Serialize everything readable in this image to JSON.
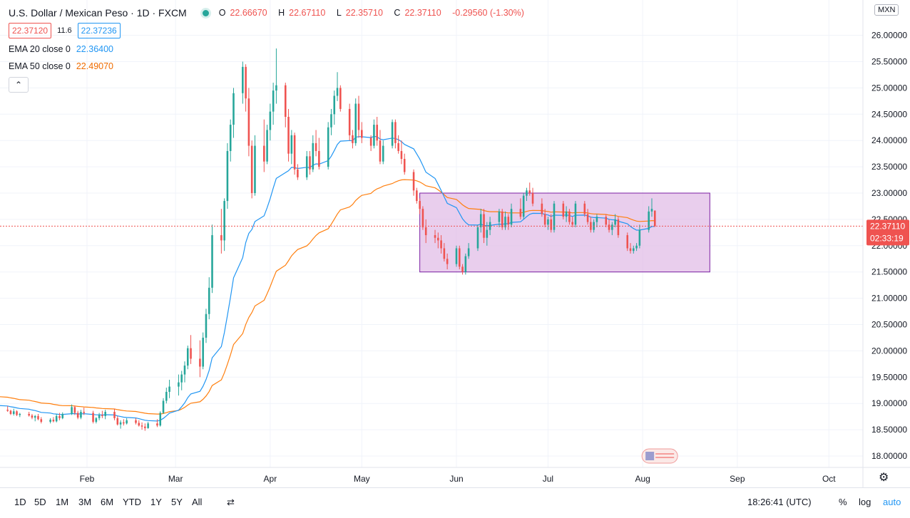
{
  "header": {
    "symbol": "U.S. Dollar / Mexican Peso · 1D · FXCM",
    "ohlc": {
      "o": "22.66670",
      "h": "22.67110",
      "l": "22.35710",
      "c": "22.37110",
      "chg": "-0.29560 (-1.30%)"
    },
    "sell": "22.37120",
    "spread": "11.6",
    "buy": "22.37236",
    "ema20_label": "EMA 20 close 0",
    "ema20_value": "22.36400",
    "ema50_label": "EMA 50 close 0",
    "ema50_value": "22.49070",
    "currency": "MXN"
  },
  "bottom_bar": {
    "timeframes": [
      "1D",
      "5D",
      "1M",
      "3M",
      "6M",
      "YTD",
      "1Y",
      "5Y",
      "All"
    ],
    "time": "18:26:41 (UTC)",
    "percent": "%",
    "log": "log",
    "auto": "auto"
  },
  "price_label": {
    "value": "22.37110",
    "countdown": "02:33:19",
    "color": "#ef5350"
  },
  "colors": {
    "up": "#26a69a",
    "down": "#ef5350",
    "ema20": "#2196f3",
    "ema50": "#ff7f0e",
    "rect_fill": "#e1bee7",
    "rect_border": "#7b1fa2"
  },
  "chart_data": {
    "type": "candlestick",
    "title": "U.S. Dollar / Mexican Peso · 1D · FXCM",
    "y_ticks": [
      18.0,
      18.5,
      19.0,
      19.5,
      20.0,
      20.5,
      21.0,
      21.5,
      22.0,
      22.5,
      23.0,
      23.5,
      24.0,
      24.5,
      25.0,
      25.5,
      26.0
    ],
    "y_tick_labels": [
      "18.00000",
      "18.50000",
      "19.00000",
      "19.50000",
      "20.00000",
      "20.50000",
      "21.00000",
      "21.50000",
      "22.00000",
      "22.50000",
      "23.00000",
      "23.50000",
      "24.00000",
      "24.50000",
      "25.00000",
      "25.50000",
      "26.00000"
    ],
    "x_labels": [
      "Feb",
      "Mar",
      "Apr",
      "May",
      "Jun",
      "Jul",
      "Aug",
      "Sep",
      "Oct"
    ],
    "x_label_dates": [
      "2020-02-01",
      "2020-03-01",
      "2020-04-01",
      "2020-05-01",
      "2020-06-01",
      "2020-07-01",
      "2020-08-01",
      "2020-09-01",
      "2020-10-01"
    ],
    "last_price": 22.3711,
    "rectangle": {
      "date_from": "2020-05-20",
      "date_to": "2020-08-23",
      "price_high": 23.0,
      "price_low": 21.5
    },
    "candles": [
      [
        "2020-01-02",
        18.9,
        18.94,
        18.83,
        18.87
      ],
      [
        "2020-01-03",
        18.87,
        18.92,
        18.82,
        18.88
      ],
      [
        "2020-01-06",
        18.88,
        18.95,
        18.84,
        18.86
      ],
      [
        "2020-01-07",
        18.86,
        18.88,
        18.78,
        18.8
      ],
      [
        "2020-01-08",
        18.8,
        18.9,
        18.77,
        18.85
      ],
      [
        "2020-01-09",
        18.85,
        18.87,
        18.76,
        18.78
      ],
      [
        "2020-01-10",
        18.78,
        18.82,
        18.74,
        18.8
      ],
      [
        "2020-01-13",
        18.8,
        18.84,
        18.75,
        18.77
      ],
      [
        "2020-01-14",
        18.77,
        18.8,
        18.7,
        18.73
      ],
      [
        "2020-01-15",
        18.73,
        18.78,
        18.66,
        18.76
      ],
      [
        "2020-01-16",
        18.76,
        18.8,
        18.68,
        18.7
      ],
      [
        "2020-01-17",
        18.7,
        18.74,
        18.62,
        18.65
      ],
      [
        "2020-01-20",
        18.65,
        18.72,
        18.62,
        18.69
      ],
      [
        "2020-01-21",
        18.69,
        18.74,
        18.64,
        18.66
      ],
      [
        "2020-01-22",
        18.66,
        18.8,
        18.64,
        18.76
      ],
      [
        "2020-01-23",
        18.76,
        18.82,
        18.68,
        18.72
      ],
      [
        "2020-01-24",
        18.72,
        18.83,
        18.7,
        18.8
      ],
      [
        "2020-01-27",
        18.8,
        18.98,
        18.78,
        18.93
      ],
      [
        "2020-01-28",
        18.93,
        18.96,
        18.78,
        18.82
      ],
      [
        "2020-01-29",
        18.82,
        18.86,
        18.7,
        18.73
      ],
      [
        "2020-01-30",
        18.73,
        18.88,
        18.7,
        18.84
      ],
      [
        "2020-01-31",
        18.84,
        18.92,
        18.78,
        18.82
      ],
      [
        "2020-02-03",
        18.82,
        18.86,
        18.62,
        18.65
      ],
      [
        "2020-02-04",
        18.65,
        18.74,
        18.62,
        18.72
      ],
      [
        "2020-02-05",
        18.72,
        18.82,
        18.68,
        18.78
      ],
      [
        "2020-02-06",
        18.78,
        18.86,
        18.72,
        18.76
      ],
      [
        "2020-02-07",
        18.76,
        18.88,
        18.7,
        18.84
      ],
      [
        "2020-02-10",
        18.84,
        18.9,
        18.68,
        18.72
      ],
      [
        "2020-02-11",
        18.72,
        18.76,
        18.58,
        18.6
      ],
      [
        "2020-02-12",
        18.6,
        18.68,
        18.52,
        18.64
      ],
      [
        "2020-02-13",
        18.64,
        18.7,
        18.58,
        18.62
      ],
      [
        "2020-02-14",
        18.62,
        18.72,
        18.6,
        18.68
      ],
      [
        "2020-02-17",
        18.68,
        18.72,
        18.6,
        18.63
      ],
      [
        "2020-02-18",
        18.63,
        18.68,
        18.56,
        18.58
      ],
      [
        "2020-02-19",
        18.58,
        18.64,
        18.5,
        18.56
      ],
      [
        "2020-02-20",
        18.56,
        18.62,
        18.48,
        18.53
      ],
      [
        "2020-02-21",
        18.53,
        18.65,
        18.52,
        18.62
      ],
      [
        "2020-02-24",
        18.62,
        18.7,
        18.55,
        18.58
      ],
      [
        "2020-02-25",
        18.58,
        18.85,
        18.56,
        18.82
      ],
      [
        "2020-02-26",
        18.82,
        19.1,
        18.8,
        19.05
      ],
      [
        "2020-02-27",
        19.05,
        19.3,
        19.0,
        19.22
      ],
      [
        "2020-02-28",
        19.22,
        19.45,
        19.1,
        19.32
      ],
      [
        "2020-03-02",
        19.32,
        19.55,
        19.15,
        19.4
      ],
      [
        "2020-03-03",
        19.4,
        19.62,
        19.25,
        19.55
      ],
      [
        "2020-03-04",
        19.55,
        19.8,
        19.4,
        19.72
      ],
      [
        "2020-03-05",
        19.72,
        20.1,
        19.65,
        20.05
      ],
      [
        "2020-03-06",
        20.05,
        20.3,
        19.75,
        19.85
      ],
      [
        "2020-03-09",
        19.85,
        20.2,
        19.5,
        19.7
      ],
      [
        "2020-03-10",
        19.7,
        20.35,
        19.65,
        20.25
      ],
      [
        "2020-03-11",
        20.25,
        20.8,
        20.15,
        20.7
      ],
      [
        "2020-03-12",
        20.7,
        21.4,
        20.6,
        21.2
      ],
      [
        "2020-03-13",
        21.2,
        22.4,
        21.1,
        22.2
      ],
      [
        "2020-03-16",
        22.2,
        22.7,
        21.85,
        22.1
      ],
      [
        "2020-03-17",
        22.1,
        22.9,
        21.9,
        22.85
      ],
      [
        "2020-03-18",
        22.85,
        23.95,
        22.7,
        23.8
      ],
      [
        "2020-03-19",
        23.8,
        24.4,
        23.6,
        24.3
      ],
      [
        "2020-03-20",
        24.3,
        25.0,
        24.05,
        24.9
      ],
      [
        "2020-03-23",
        24.9,
        25.5,
        24.7,
        25.4
      ],
      [
        "2020-03-24",
        25.4,
        25.45,
        24.55,
        24.8
      ],
      [
        "2020-03-25",
        24.8,
        25.0,
        23.7,
        23.9
      ],
      [
        "2020-03-26",
        23.9,
        24.0,
        22.9,
        23.0
      ],
      [
        "2020-03-27",
        23.0,
        24.1,
        22.95,
        23.9
      ],
      [
        "2020-03-30",
        23.9,
        24.4,
        23.4,
        23.6
      ],
      [
        "2020-03-31",
        23.6,
        24.3,
        23.55,
        24.2
      ],
      [
        "2020-04-01",
        24.2,
        24.7,
        24.0,
        24.55
      ],
      [
        "2020-04-02",
        24.55,
        25.1,
        24.3,
        24.95
      ],
      [
        "2020-04-03",
        24.95,
        25.75,
        24.7,
        25.05
      ],
      [
        "2020-04-06",
        25.05,
        25.1,
        24.25,
        24.45
      ],
      [
        "2020-04-07",
        24.45,
        24.6,
        23.6,
        23.75
      ],
      [
        "2020-04-08",
        23.75,
        24.2,
        23.55,
        24.1
      ],
      [
        "2020-04-09",
        24.1,
        24.15,
        23.35,
        23.45
      ],
      [
        "2020-04-10",
        23.45,
        23.55,
        23.25,
        23.3
      ],
      [
        "2020-04-13",
        23.3,
        23.8,
        23.25,
        23.7
      ],
      [
        "2020-04-14",
        23.7,
        23.8,
        23.35,
        23.45
      ],
      [
        "2020-04-15",
        23.45,
        24.1,
        23.4,
        23.95
      ],
      [
        "2020-04-16",
        23.95,
        24.2,
        23.7,
        23.8
      ],
      [
        "2020-04-17",
        23.8,
        24.05,
        23.45,
        23.5
      ],
      [
        "2020-04-20",
        23.5,
        24.35,
        23.45,
        24.25
      ],
      [
        "2020-04-21",
        24.25,
        24.6,
        24.1,
        24.5
      ],
      [
        "2020-04-22",
        24.5,
        24.95,
        24.3,
        24.85
      ],
      [
        "2020-04-23",
        24.85,
        25.3,
        24.75,
        25.0
      ],
      [
        "2020-04-24",
        25.0,
        25.05,
        24.55,
        24.6
      ],
      [
        "2020-04-27",
        24.6,
        24.7,
        24.0,
        24.1
      ],
      [
        "2020-04-28",
        24.1,
        24.2,
        23.85,
        23.95
      ],
      [
        "2020-04-29",
        23.95,
        24.8,
        23.9,
        24.7
      ],
      [
        "2020-04-30",
        24.7,
        24.85,
        24.05,
        24.2
      ],
      [
        "2020-05-01",
        24.2,
        24.35,
        23.95,
        24.05
      ],
      [
        "2020-05-04",
        24.05,
        24.1,
        23.8,
        23.9
      ],
      [
        "2020-05-05",
        23.9,
        24.4,
        23.85,
        24.3
      ],
      [
        "2020-05-06",
        24.3,
        24.45,
        23.9,
        24.0
      ],
      [
        "2020-05-07",
        24.0,
        24.2,
        23.55,
        23.6
      ],
      [
        "2020-05-08",
        23.6,
        24.0,
        23.55,
        23.9
      ],
      [
        "2020-05-11",
        23.9,
        24.4,
        23.85,
        24.35
      ],
      [
        "2020-05-12",
        24.35,
        24.4,
        23.85,
        23.95
      ],
      [
        "2020-05-13",
        23.95,
        24.1,
        23.75,
        23.8
      ],
      [
        "2020-05-14",
        23.8,
        24.0,
        23.55,
        23.65
      ],
      [
        "2020-05-15",
        23.65,
        23.75,
        23.35,
        23.4
      ],
      [
        "2020-05-18",
        23.4,
        23.45,
        22.95,
        23.05
      ],
      [
        "2020-05-19",
        23.05,
        23.1,
        22.8,
        22.85
      ],
      [
        "2020-05-20",
        22.85,
        22.9,
        22.6,
        22.7
      ],
      [
        "2020-05-21",
        22.7,
        22.75,
        22.3,
        22.35
      ],
      [
        "2020-05-22",
        22.35,
        22.5,
        22.05,
        22.2
      ],
      [
        "2020-05-25",
        22.2,
        22.3,
        22.05,
        22.15
      ],
      [
        "2020-05-26",
        22.15,
        22.25,
        21.95,
        22.1
      ],
      [
        "2020-05-27",
        22.1,
        22.2,
        21.85,
        21.95
      ],
      [
        "2020-05-28",
        21.95,
        22.05,
        21.7,
        21.75
      ],
      [
        "2020-05-29",
        21.75,
        21.85,
        21.55,
        21.65
      ],
      [
        "2020-06-01",
        21.65,
        22.0,
        21.6,
        21.95
      ],
      [
        "2020-06-02",
        21.95,
        22.0,
        21.55,
        21.6
      ],
      [
        "2020-06-03",
        21.6,
        21.65,
        21.45,
        21.5
      ],
      [
        "2020-06-04",
        21.5,
        21.85,
        21.45,
        21.8
      ],
      [
        "2020-06-05",
        21.8,
        22.05,
        21.75,
        21.95
      ],
      [
        "2020-06-08",
        21.95,
        22.4,
        21.9,
        22.35
      ],
      [
        "2020-06-09",
        22.35,
        22.7,
        22.25,
        22.6
      ],
      [
        "2020-06-10",
        22.6,
        22.7,
        22.05,
        22.15
      ],
      [
        "2020-06-11",
        22.15,
        22.45,
        22.0,
        22.3
      ],
      [
        "2020-06-12",
        22.3,
        22.55,
        22.2,
        22.45
      ],
      [
        "2020-06-15",
        22.45,
        22.7,
        22.35,
        22.65
      ],
      [
        "2020-06-16",
        22.65,
        22.7,
        22.3,
        22.35
      ],
      [
        "2020-06-17",
        22.35,
        22.65,
        22.3,
        22.55
      ],
      [
        "2020-06-18",
        22.55,
        22.6,
        22.3,
        22.4
      ],
      [
        "2020-06-19",
        22.4,
        22.8,
        22.35,
        22.7
      ],
      [
        "2020-06-22",
        22.7,
        22.9,
        22.5,
        22.55
      ],
      [
        "2020-06-23",
        22.55,
        23.0,
        22.5,
        22.95
      ],
      [
        "2020-06-24",
        22.95,
        23.1,
        22.85,
        23.05
      ],
      [
        "2020-06-25",
        23.05,
        23.2,
        22.95,
        23.0
      ],
      [
        "2020-06-26",
        23.0,
        23.1,
        22.75,
        22.8
      ],
      [
        "2020-06-29",
        22.8,
        22.9,
        22.55,
        22.6
      ],
      [
        "2020-06-30",
        22.6,
        22.7,
        22.35,
        22.4
      ],
      [
        "2020-07-01",
        22.4,
        22.55,
        22.3,
        22.5
      ],
      [
        "2020-07-02",
        22.5,
        22.6,
        22.25,
        22.3
      ],
      [
        "2020-07-03",
        22.3,
        22.85,
        22.25,
        22.8
      ],
      [
        "2020-07-06",
        22.8,
        22.85,
        22.5,
        22.55
      ],
      [
        "2020-07-07",
        22.55,
        22.75,
        22.45,
        22.65
      ],
      [
        "2020-07-08",
        22.65,
        22.7,
        22.4,
        22.45
      ],
      [
        "2020-07-09",
        22.45,
        22.55,
        22.35,
        22.4
      ],
      [
        "2020-07-10",
        22.4,
        22.85,
        22.35,
        22.8
      ],
      [
        "2020-07-13",
        22.8,
        22.85,
        22.55,
        22.6
      ],
      [
        "2020-07-14",
        22.6,
        22.7,
        22.4,
        22.45
      ],
      [
        "2020-07-15",
        22.45,
        22.55,
        22.25,
        22.3
      ],
      [
        "2020-07-16",
        22.3,
        22.5,
        22.25,
        22.45
      ],
      [
        "2020-07-17",
        22.45,
        22.6,
        22.35,
        22.55
      ],
      [
        "2020-07-20",
        22.55,
        22.6,
        22.35,
        22.4
      ],
      [
        "2020-07-21",
        22.4,
        22.5,
        22.25,
        22.3
      ],
      [
        "2020-07-22",
        22.3,
        22.45,
        22.2,
        22.4
      ],
      [
        "2020-07-23",
        22.4,
        22.6,
        22.35,
        22.5
      ],
      [
        "2020-07-24",
        22.5,
        22.55,
        22.15,
        22.2
      ],
      [
        "2020-07-27",
        22.2,
        22.25,
        21.9,
        21.95
      ],
      [
        "2020-07-28",
        21.95,
        22.05,
        21.85,
        21.9
      ],
      [
        "2020-07-29",
        21.9,
        22.0,
        21.85,
        21.95
      ],
      [
        "2020-07-30",
        21.95,
        22.05,
        21.9,
        22.0
      ],
      [
        "2020-07-31",
        22.0,
        22.4,
        21.95,
        22.3
      ],
      [
        "2020-08-03",
        22.3,
        22.75,
        22.25,
        22.65
      ],
      [
        "2020-08-04",
        22.65,
        22.9,
        22.55,
        22.7
      ],
      [
        "2020-08-05",
        22.6667,
        22.6711,
        22.3571,
        22.3711
      ]
    ]
  }
}
